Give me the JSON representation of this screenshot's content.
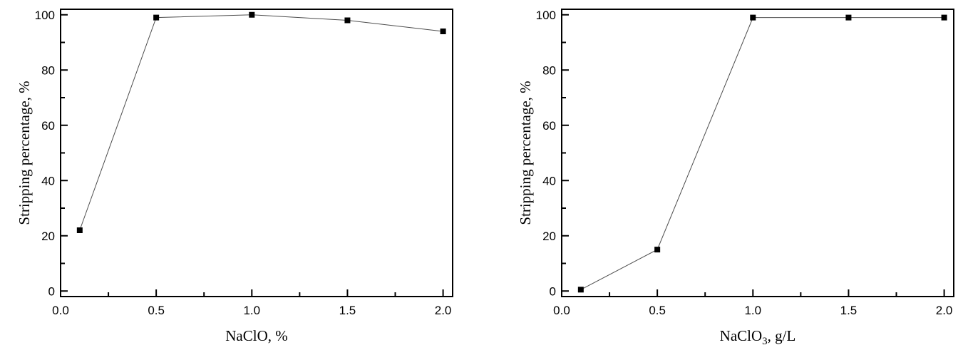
{
  "figure": {
    "background_color": "#ffffff",
    "frame_color": "#000000",
    "line_color": "#4d4d4d",
    "marker_color": "#000000",
    "text_color": "#000000"
  },
  "chart_data": [
    {
      "type": "line",
      "name": "naclo-stripping-chart",
      "title": "",
      "xlabel": "NaClO, %",
      "xlabel_parts": [
        {
          "text": "NaClO, %",
          "sub": false
        }
      ],
      "ylabel": "Stripping percentage, %",
      "series": [
        {
          "name": "stripping-percentage-vs-naclo",
          "x": [
            0.1,
            0.5,
            1.0,
            1.5,
            2.0
          ],
          "y": [
            22,
            99,
            100,
            98,
            94
          ]
        }
      ],
      "xlim": [
        0,
        2.05
      ],
      "ylim": [
        -2,
        102
      ],
      "xticks": [
        0.0,
        0.5,
        1.0,
        1.5,
        2.0
      ],
      "xtick_labels": [
        "0.0",
        "0.5",
        "1.0",
        "1.5",
        "2.0"
      ],
      "xminor_ticks": [
        0.25,
        0.75,
        1.25,
        1.75
      ],
      "yticks": [
        0,
        20,
        40,
        60,
        80,
        100
      ],
      "ytick_labels": [
        "0",
        "20",
        "40",
        "60",
        "80",
        "100"
      ],
      "yminor_ticks": [
        10,
        30,
        50,
        70,
        90
      ],
      "marker": "filled-square",
      "marker_size": 8,
      "grid": false,
      "legend": "none"
    },
    {
      "type": "line",
      "name": "naclo3-stripping-chart",
      "title": "",
      "xlabel": "NaClO3, g/L",
      "xlabel_parts": [
        {
          "text": "NaClO",
          "sub": false
        },
        {
          "text": "3",
          "sub": true
        },
        {
          "text": ", g/L",
          "sub": false
        }
      ],
      "ylabel": "Stripping percentage, %",
      "series": [
        {
          "name": "stripping-percentage-vs-naclo3",
          "x": [
            0.1,
            0.5,
            1.0,
            1.5,
            2.0
          ],
          "y": [
            0.5,
            15,
            99,
            99,
            99
          ]
        }
      ],
      "xlim": [
        0,
        2.05
      ],
      "ylim": [
        -2,
        102
      ],
      "xticks": [
        0.0,
        0.5,
        1.0,
        1.5,
        2.0
      ],
      "xtick_labels": [
        "0.0",
        "0.5",
        "1.0",
        "1.5",
        "2.0"
      ],
      "xminor_ticks": [
        0.25,
        0.75,
        1.25,
        1.75
      ],
      "yticks": [
        0,
        20,
        40,
        60,
        80,
        100
      ],
      "ytick_labels": [
        "0",
        "20",
        "40",
        "60",
        "80",
        "100"
      ],
      "yminor_ticks": [
        10,
        30,
        50,
        70,
        90
      ],
      "marker": "filled-square",
      "marker_size": 8,
      "grid": false,
      "legend": "none"
    }
  ]
}
